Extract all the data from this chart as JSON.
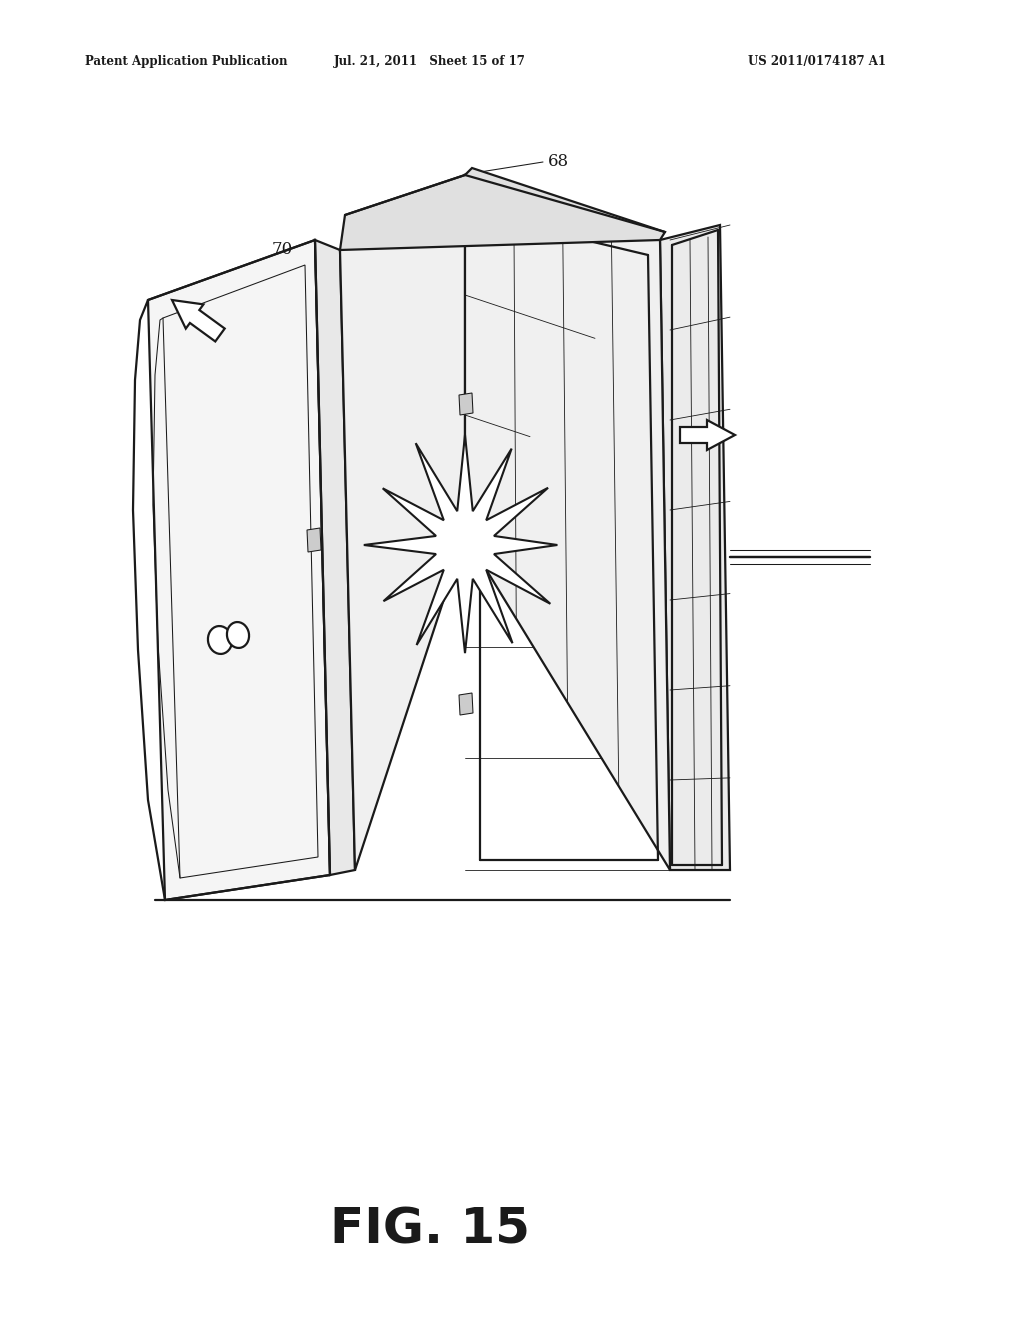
{
  "bg_color": "#ffffff",
  "line_color": "#1a1a1a",
  "header_left": "Patent Application Publication",
  "header_mid": "Jul. 21, 2011   Sheet 15 of 17",
  "header_right": "US 2011/0174187 A1",
  "fig_label": "FIG. 15",
  "lw_main": 1.6,
  "lw_thin": 0.75,
  "lw_thick": 2.2
}
